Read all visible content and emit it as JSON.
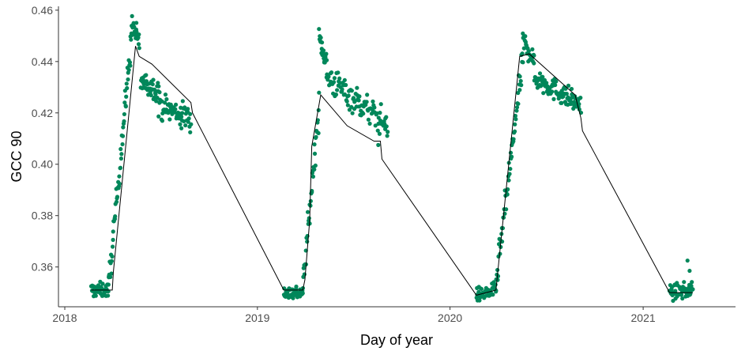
{
  "chart_data": {
    "type": "scatter",
    "xlabel": "Day of year",
    "ylabel": "GCC 90",
    "xlim": [
      "2017-12-20",
      "2021-06-25"
    ],
    "ylim": [
      0.3445,
      0.4615
    ],
    "x_ticks": [
      {
        "value": "2018-01-01",
        "label": "2018"
      },
      {
        "value": "2019-01-01",
        "label": "2019"
      },
      {
        "value": "2020-01-01",
        "label": "2020"
      },
      {
        "value": "2021-01-01",
        "label": "2021"
      }
    ],
    "y_ticks": [
      {
        "value": 0.36,
        "label": "0.36"
      },
      {
        "value": 0.38,
        "label": "0.38"
      },
      {
        "value": 0.4,
        "label": "0.40"
      },
      {
        "value": 0.42,
        "label": "0.42"
      },
      {
        "value": 0.44,
        "label": "0.44"
      },
      {
        "value": 0.46,
        "label": "0.46"
      }
    ],
    "grid": false,
    "legend": "none",
    "colors": {
      "points": "#00875a",
      "line": "#000000",
      "axis": "#333333",
      "ticks_text": "#4d4d4d"
    },
    "series": [
      {
        "kind": "points",
        "segments": [
          {
            "x_start": "2018-02-20",
            "x_end": "2018-03-25",
            "y_start": 0.351,
            "y_end": 0.351,
            "noise": 0.002,
            "count": 45
          },
          {
            "x_start": "2018-03-25",
            "x_end": "2018-05-08",
            "y_start": 0.352,
            "y_end": 0.451,
            "noise": 0.004,
            "count": 60
          },
          {
            "x_start": "2018-05-08",
            "x_end": "2018-05-22",
            "y_start": 0.455,
            "y_end": 0.447,
            "noise": 0.003,
            "count": 22
          },
          {
            "x_start": "2018-05-25",
            "x_end": "2018-06-28",
            "y_start": 0.432,
            "y_end": 0.429,
            "noise": 0.003,
            "count": 40
          },
          {
            "x_start": "2018-06-28",
            "x_end": "2018-08-28",
            "y_start": 0.423,
            "y_end": 0.418,
            "noise": 0.0035,
            "count": 65
          },
          {
            "x_start": "2019-02-20",
            "x_end": "2019-03-28",
            "y_start": 0.35,
            "y_end": 0.35,
            "noise": 0.002,
            "count": 45
          },
          {
            "x_start": "2019-03-28",
            "x_end": "2019-04-28",
            "y_start": 0.352,
            "y_end": 0.423,
            "noise": 0.004,
            "count": 40
          },
          {
            "x_start": "2019-04-28",
            "x_end": "2019-05-12",
            "y_start": 0.449,
            "y_end": 0.44,
            "noise": 0.003,
            "count": 22
          },
          {
            "x_start": "2019-05-12",
            "x_end": "2019-09-05",
            "y_start": 0.434,
            "y_end": 0.415,
            "noise": 0.004,
            "count": 110
          },
          {
            "x_start": "2020-02-20",
            "x_end": "2020-03-28",
            "y_start": 0.349,
            "y_end": 0.351,
            "noise": 0.002,
            "count": 45
          },
          {
            "x_start": "2020-03-28",
            "x_end": "2020-05-18",
            "y_start": 0.353,
            "y_end": 0.441,
            "noise": 0.004,
            "count": 60
          },
          {
            "x_start": "2020-05-18",
            "x_end": "2020-06-08",
            "y_start": 0.448,
            "y_end": 0.441,
            "noise": 0.003,
            "count": 25
          },
          {
            "x_start": "2020-06-08",
            "x_end": "2020-09-05",
            "y_start": 0.434,
            "y_end": 0.423,
            "noise": 0.003,
            "count": 100
          },
          {
            "x_start": "2021-02-20",
            "x_end": "2021-04-05",
            "y_start": 0.35,
            "y_end": 0.351,
            "noise": 0.002,
            "count": 55
          }
        ],
        "outliers": [
          {
            "x": "2021-03-26",
            "y": 0.3625
          },
          {
            "x": "2021-03-30",
            "y": 0.3585
          },
          {
            "x": "2019-08-18",
            "y": 0.4075
          },
          {
            "x": "2018-08-10",
            "y": 0.414
          }
        ]
      },
      {
        "kind": "line",
        "x": [
          "2018-02-20",
          "2018-04-01",
          "2018-04-03",
          "2018-05-15",
          "2018-05-22",
          "2018-06-15",
          "2018-08-28",
          "2018-08-31",
          "2019-02-20",
          "2019-03-28",
          "2019-04-01",
          "2019-04-10",
          "2019-04-14",
          "2019-05-01",
          "2019-06-20",
          "2019-08-10",
          "2019-08-22",
          "2019-08-25",
          "2020-02-20",
          "2020-03-28",
          "2020-05-12",
          "2020-05-30",
          "2020-08-25",
          "2020-09-05",
          "2020-09-08",
          "2021-02-20",
          "2021-04-05"
        ],
        "y": [
          0.351,
          0.351,
          0.358,
          0.446,
          0.442,
          0.439,
          0.424,
          0.42,
          0.351,
          0.351,
          0.355,
          0.378,
          0.407,
          0.427,
          0.415,
          0.409,
          0.409,
          0.402,
          0.349,
          0.351,
          0.442,
          0.443,
          0.427,
          0.418,
          0.413,
          0.35,
          0.35
        ]
      }
    ]
  }
}
